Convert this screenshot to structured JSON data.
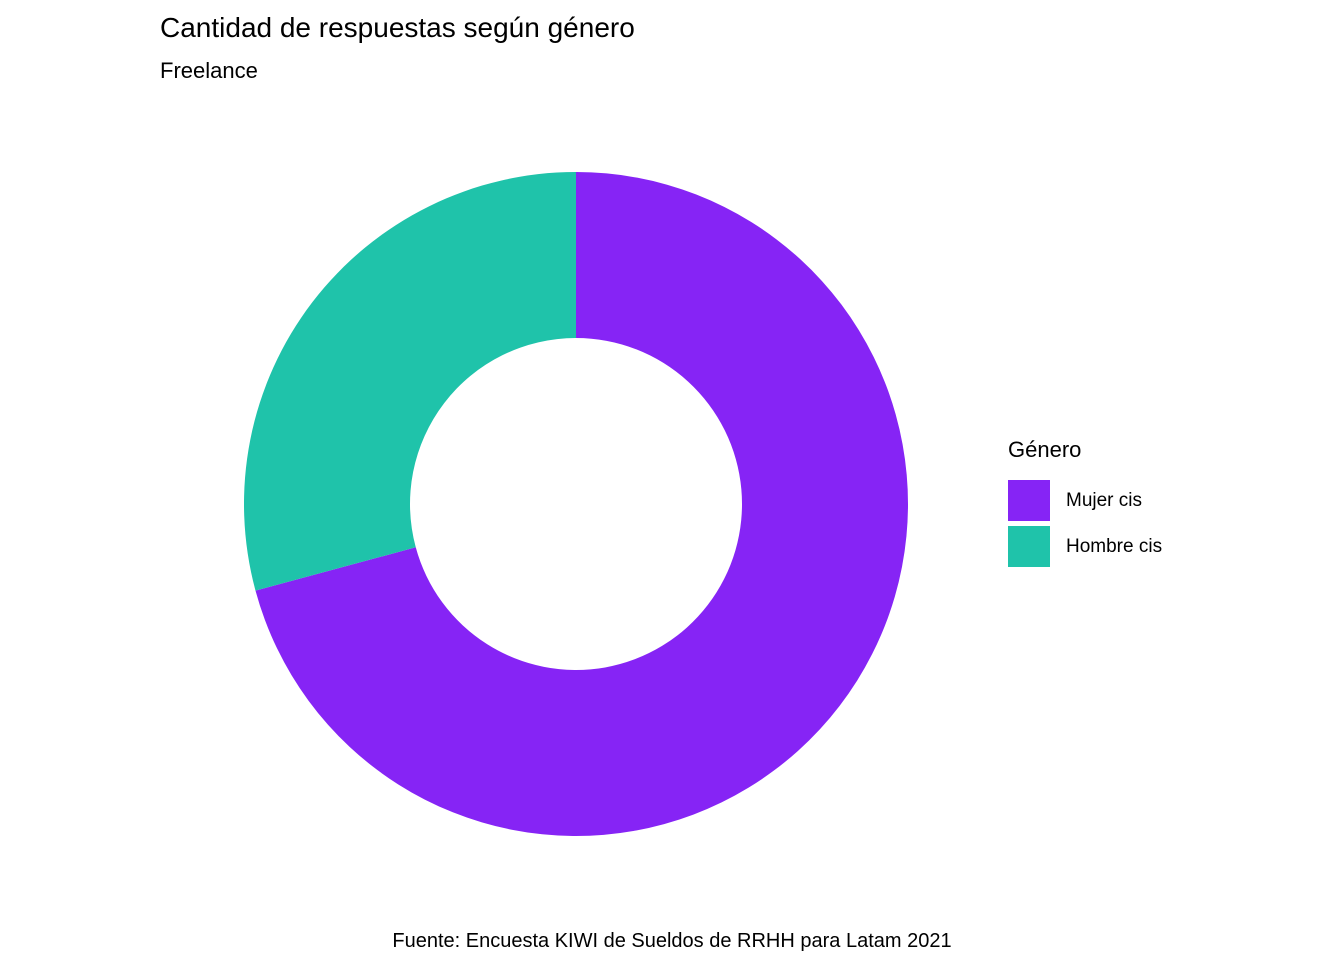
{
  "header": {
    "title": "Cantidad de respuestas según género",
    "subtitle": "Freelance"
  },
  "caption": "Fuente: Encuesta KIWI de Sueldos de RRHH para Latam 2021",
  "colors": {
    "mujer_cis": "#8624F5",
    "hombre_cis": "#1FC3AA",
    "background": "#FFFFFF",
    "text": "#000000"
  },
  "legend": {
    "title": "Género",
    "position": "right",
    "items": [
      {
        "label": "Mujer cis",
        "color": "#8624F5"
      },
      {
        "label": "Hombre cis",
        "color": "#1FC3AA"
      }
    ]
  },
  "chart_data": {
    "type": "pie",
    "subtype": "donut",
    "title": "Cantidad de respuestas según género",
    "subtitle": "Freelance",
    "caption": "Fuente: Encuesta KIWI de Sueldos de RRHH para Latam 2021",
    "legend_title": "Género",
    "legend_position": "right",
    "categories": [
      "Mujer cis",
      "Hombre cis"
    ],
    "values_percent": [
      70.8,
      29.2
    ],
    "colors": [
      "#8624F5",
      "#1FC3AA"
    ],
    "start_angle_deg": 0,
    "direction": "clockwise",
    "inner_radius_ratio": 0.5
  }
}
